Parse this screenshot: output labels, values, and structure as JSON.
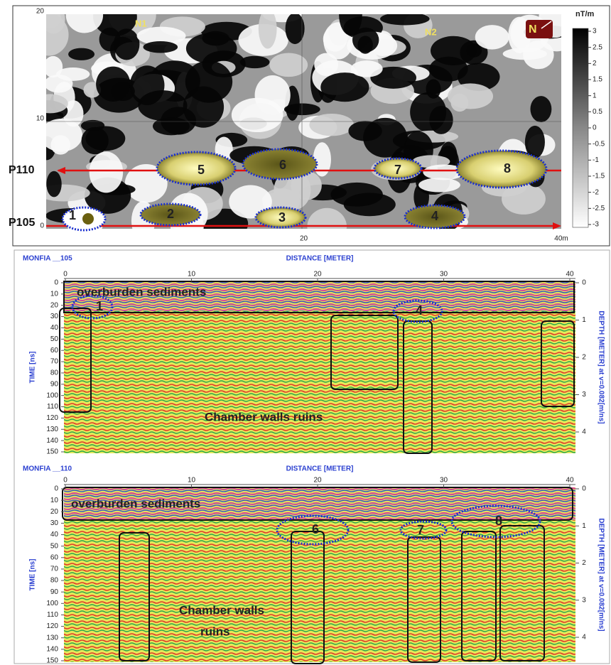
{
  "map": {
    "yticks": [
      0,
      10,
      20
    ],
    "xticks": [
      20,
      {
        "value": 40,
        "label": "40m"
      }
    ],
    "sites": [
      "N1",
      "N2"
    ],
    "north": "N",
    "profiles": [
      "P110",
      "P105"
    ],
    "anomalies": [
      "1",
      "2",
      "3",
      "4",
      "5",
      "6",
      "7",
      "8"
    ]
  },
  "colorbar": {
    "title": "nT/m",
    "ticks": [
      3,
      2.5,
      2,
      1.5,
      1,
      0.5,
      0,
      -0.5,
      -1,
      -1.5,
      -2,
      -2.5,
      -3
    ]
  },
  "radargrams": [
    {
      "title": "MONFIA __105",
      "xlabel": "DISTANCE [METER]",
      "ylabel": "TIME [ns]",
      "y2label": "DEPTH [METER] at v=0.082[m/ns]",
      "xticks": [
        0,
        10,
        20,
        30,
        40
      ],
      "yticks": [
        0,
        10,
        20,
        30,
        40,
        50,
        60,
        70,
        80,
        90,
        100,
        110,
        120,
        130,
        140,
        150
      ],
      "y2ticks": [
        0,
        1,
        2,
        3,
        4
      ],
      "overburden": "overburden sediments",
      "walls": [
        "Chamber walls ruins"
      ],
      "anomalies": [
        "1",
        "4"
      ]
    },
    {
      "title": "MONFIA __110",
      "xlabel": "DISTANCE [METER]",
      "ylabel": "TIME [ns]",
      "y2label": "DEPTH [METER] at v=0.082[m/ns]",
      "xticks": [
        0,
        10,
        20,
        30,
        40
      ],
      "yticks": [
        0,
        10,
        20,
        30,
        40,
        50,
        60,
        70,
        80,
        90,
        100,
        110,
        120,
        130,
        140,
        150
      ],
      "y2ticks": [
        0,
        1,
        2,
        3,
        4
      ],
      "overburden": "overburden sediments",
      "walls": [
        "Chamber walls",
        "ruins"
      ],
      "anomalies": [
        "6",
        "7",
        "8"
      ]
    }
  ]
}
